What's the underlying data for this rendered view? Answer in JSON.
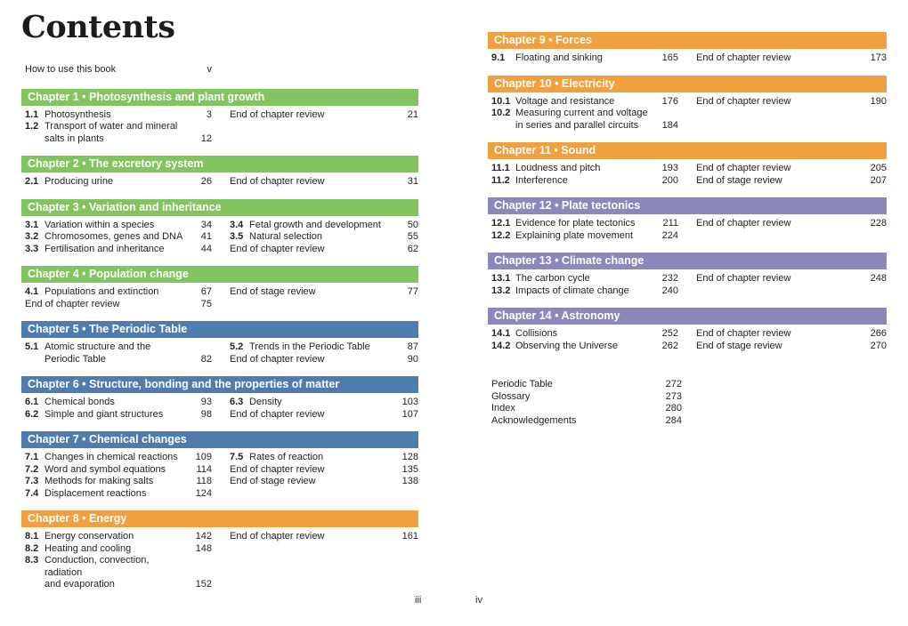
{
  "title": "Contents",
  "front_matter": {
    "label": "How to use this book",
    "page": "v"
  },
  "folios": {
    "left": "iii",
    "right": "iv"
  },
  "colors": {
    "green": "#82c45f",
    "blue": "#4f7caf",
    "orange": "#f0a03f",
    "purple": "#8d88bb"
  },
  "chapters": [
    {
      "side": "left",
      "color": "green",
      "title": "Chapter 1 • Photosynthesis and plant growth",
      "col1": [
        {
          "num": "1.1",
          "label": "Photosynthesis",
          "page": "3"
        },
        {
          "num": "1.2",
          "label": "Transport of water and mineral\nsalts in plants",
          "page": "12"
        }
      ],
      "col2": [
        {
          "num": "",
          "label": "End of chapter review",
          "page": "21"
        }
      ]
    },
    {
      "side": "left",
      "color": "green",
      "title": "Chapter 2 • The excretory system",
      "col1": [
        {
          "num": "2.1",
          "label": "Producing urine",
          "page": "26"
        }
      ],
      "col2": [
        {
          "num": "",
          "label": "End of chapter review",
          "page": "31"
        }
      ]
    },
    {
      "side": "left",
      "color": "green",
      "title": "Chapter 3 • Variation and inheritance",
      "col1": [
        {
          "num": "3.1",
          "label": "Variation within a species",
          "page": "34"
        },
        {
          "num": "3.2",
          "label": "Chromosomes, genes and DNA",
          "page": "41"
        },
        {
          "num": "3.3",
          "label": "Fertilisation and inheritance",
          "page": "44"
        }
      ],
      "col2": [
        {
          "num": "3.4",
          "label": "Fetal growth and development",
          "page": "50"
        },
        {
          "num": "3.5",
          "label": "Natural selection",
          "page": "55"
        },
        {
          "num": "",
          "label": "End of chapter review",
          "page": "62"
        }
      ]
    },
    {
      "side": "left",
      "color": "green",
      "title": "Chapter 4 • Population change",
      "col1": [
        {
          "num": "4.1",
          "label": "Populations and extinction",
          "page": "67"
        },
        {
          "num": "",
          "label": "End of chapter review",
          "page": "75"
        }
      ],
      "col2": [
        {
          "num": "",
          "label": "End of stage review",
          "page": "77"
        }
      ]
    },
    {
      "side": "left",
      "color": "blue",
      "title": "Chapter 5 • The Periodic Table",
      "col1": [
        {
          "num": "5.1",
          "label": "Atomic structure and the\nPeriodic Table",
          "page": "82"
        }
      ],
      "col2": [
        {
          "num": "5.2",
          "label": "Trends in the Periodic Table",
          "page": "87"
        },
        {
          "num": "",
          "label": "End of chapter review",
          "page": "90"
        }
      ]
    },
    {
      "side": "left",
      "color": "blue",
      "title": "Chapter 6 • Structure, bonding and the properties of matter",
      "col1": [
        {
          "num": "6.1",
          "label": "Chemical bonds",
          "page": "93"
        },
        {
          "num": "6.2",
          "label": "Simple and giant structures",
          "page": "98"
        }
      ],
      "col2": [
        {
          "num": "6.3",
          "label": "Density",
          "page": "103"
        },
        {
          "num": "",
          "label": "End of chapter review",
          "page": "107"
        }
      ]
    },
    {
      "side": "left",
      "color": "blue",
      "title": "Chapter 7 • Chemical changes",
      "col1": [
        {
          "num": "7.1",
          "label": "Changes in chemical reactions",
          "page": "109"
        },
        {
          "num": "7.2",
          "label": "Word and symbol equations",
          "page": "114"
        },
        {
          "num": "7.3",
          "label": "Methods for making salts",
          "page": "118"
        },
        {
          "num": "7.4",
          "label": "Displacement reactions",
          "page": "124"
        }
      ],
      "col2": [
        {
          "num": "7.5",
          "label": "Rates of reaction",
          "page": "128"
        },
        {
          "num": "",
          "label": "End of chapter review",
          "page": "135"
        },
        {
          "num": "",
          "label": "End of stage review",
          "page": "138"
        }
      ]
    },
    {
      "side": "left",
      "color": "orange",
      "title": "Chapter 8 • Energy",
      "col1": [
        {
          "num": "8.1",
          "label": "Energy conservation",
          "page": "142"
        },
        {
          "num": "8.2",
          "label": "Heating and cooling",
          "page": "148"
        },
        {
          "num": "8.3",
          "label": "Conduction, convection, radiation\nand evaporation",
          "page": "152"
        }
      ],
      "col2": [
        {
          "num": "",
          "label": "End of chapter review",
          "page": "161"
        }
      ]
    },
    {
      "side": "right",
      "color": "orange",
      "title": "Chapter 9 • Forces",
      "col1": [
        {
          "num": "9.1",
          "label": "Floating and sinking",
          "page": "165"
        }
      ],
      "col2": [
        {
          "num": "",
          "label": "End of chapter review",
          "page": "173"
        }
      ]
    },
    {
      "side": "right",
      "color": "orange",
      "title": "Chapter 10 • Electricity",
      "col1": [
        {
          "num": "10.1",
          "label": "Voltage and resistance",
          "page": "176"
        },
        {
          "num": "10.2",
          "label": "Measuring current and voltage\nin series and parallel circuits",
          "page": "184"
        }
      ],
      "col2": [
        {
          "num": "",
          "label": "End of chapter review",
          "page": "190"
        }
      ]
    },
    {
      "side": "right",
      "color": "orange",
      "title": "Chapter 11 • Sound",
      "col1": [
        {
          "num": "11.1",
          "label": "Loudness and pitch",
          "page": "193"
        },
        {
          "num": "11.2",
          "label": "Interference",
          "page": "200"
        }
      ],
      "col2": [
        {
          "num": "",
          "label": "End of chapter review",
          "page": "205"
        },
        {
          "num": "",
          "label": "End of stage review",
          "page": "207"
        }
      ]
    },
    {
      "side": "right",
      "color": "purple",
      "title": "Chapter 12 • Plate tectonics",
      "col1": [
        {
          "num": "12.1",
          "label": "Evidence for plate tectonics",
          "page": "211"
        },
        {
          "num": "12.2",
          "label": "Explaining plate movement",
          "page": "224"
        }
      ],
      "col2": [
        {
          "num": "",
          "label": "End of chapter review",
          "page": "228"
        }
      ]
    },
    {
      "side": "right",
      "color": "purple",
      "title": "Chapter 13 • Climate change",
      "col1": [
        {
          "num": "13.1",
          "label": "The carbon cycle",
          "page": "232"
        },
        {
          "num": "13.2",
          "label": "Impacts of climate change",
          "page": "240"
        }
      ],
      "col2": [
        {
          "num": "",
          "label": "End of chapter review",
          "page": "248"
        }
      ]
    },
    {
      "side": "right",
      "color": "purple",
      "title": "Chapter 14 • Astronomy",
      "col1": [
        {
          "num": "14.1",
          "label": "Collisions",
          "page": "252"
        },
        {
          "num": "14.2",
          "label": "Observing the Universe",
          "page": "262"
        }
      ],
      "col2": [
        {
          "num": "",
          "label": "End of chapter review",
          "page": "266"
        },
        {
          "num": "",
          "label": "End of stage review",
          "page": "270"
        }
      ]
    }
  ],
  "back_matter": [
    {
      "label": "Periodic Table",
      "page": "272"
    },
    {
      "label": "Glossary",
      "page": "273"
    },
    {
      "label": "Index",
      "page": "280"
    },
    {
      "label": "Acknowledgements",
      "page": "284"
    }
  ]
}
